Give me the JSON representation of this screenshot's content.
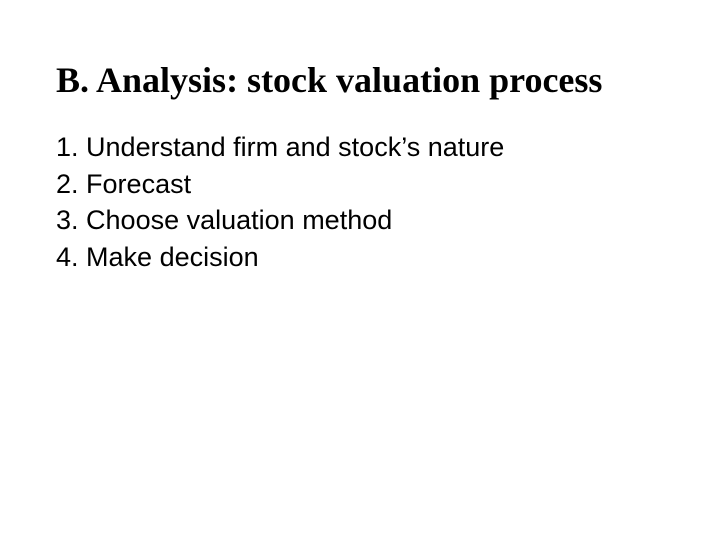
{
  "colors": {
    "background": "#ffffff",
    "text": "#000000"
  },
  "typography": {
    "title_font": "Times New Roman",
    "title_fontsize": 36,
    "title_weight": 700,
    "body_font": "Arial",
    "body_fontsize": 27,
    "body_weight": 400
  },
  "title": "B. Analysis: stock valuation process",
  "items": [
    {
      "num": "1.",
      "text": "Understand firm and stock’s nature"
    },
    {
      "num": "2.",
      "text": "Forecast"
    },
    {
      "num": "3.",
      "text": "Choose valuation method"
    },
    {
      "num": "4.",
      "text": "Make decision"
    }
  ]
}
